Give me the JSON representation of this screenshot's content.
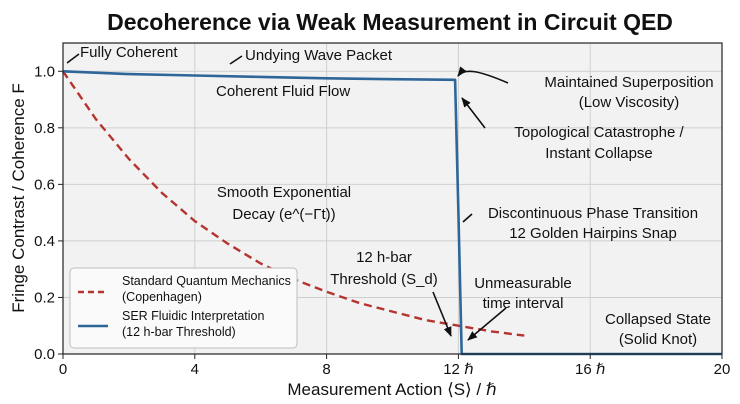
{
  "chart_data": {
    "type": "line",
    "title": "Decoherence via Weak Measurement in Circuit QED",
    "xlabel": "Measurement Action ⟨S⟩ / ℏ",
    "ylabel": "Fringe Contrast / Coherence F",
    "xlim": [
      0,
      20
    ],
    "ylim": [
      0,
      1.1
    ],
    "grid": true,
    "xticks": [
      {
        "value": 0,
        "label": "0"
      },
      {
        "value": 4,
        "label": "4"
      },
      {
        "value": 8,
        "label": "8"
      },
      {
        "value": 12,
        "label": "12 ℏ"
      },
      {
        "value": 16,
        "label": "16 ℏ"
      },
      {
        "value": 20,
        "label": "20"
      }
    ],
    "yticks": [
      {
        "value": 0,
        "label": "0.0"
      },
      {
        "value": 0.2,
        "label": "0.2"
      },
      {
        "value": 0.4,
        "label": "0.4"
      },
      {
        "value": 0.6,
        "label": "0.6"
      },
      {
        "value": 0.8,
        "label": "0.8"
      },
      {
        "value": 1.0,
        "label": "1.0"
      }
    ],
    "series": [
      {
        "name": "Standard Quantum Mechanics (Copenhagen)",
        "style": "dashed",
        "color": "#b5342f",
        "x": [
          0,
          1,
          2,
          3,
          4,
          5,
          6,
          7,
          8,
          9,
          10,
          11,
          12,
          13,
          14
        ],
        "y": [
          1.0,
          0.83,
          0.69,
          0.57,
          0.47,
          0.39,
          0.32,
          0.265,
          0.22,
          0.18,
          0.15,
          0.12,
          0.1,
          0.08,
          0.065
        ]
      },
      {
        "name": "SER Fluidic Interpretation (12 h-bar Threshold)",
        "style": "solid",
        "color": "#2f6699",
        "x": [
          0,
          2,
          4,
          6,
          8,
          10,
          11.9,
          12.0,
          12.1,
          20
        ],
        "y": [
          1.0,
          0.99,
          0.985,
          0.98,
          0.975,
          0.972,
          0.97,
          0.5,
          0.0,
          0.0
        ]
      }
    ],
    "legend_position": "bottom-left",
    "annotations": [
      {
        "lines": [
          "Fully Coherent"
        ]
      },
      {
        "lines": [
          "Undying Wave Packet"
        ]
      },
      {
        "lines": [
          "Coherent Fluid Flow"
        ]
      },
      {
        "lines": [
          "Maintained Superposition",
          "(Low Viscosity)"
        ]
      },
      {
        "lines": [
          "Topological Catastrophe /",
          "Instant Collapse"
        ]
      },
      {
        "lines": [
          "Smooth Exponential",
          "Decay (e^(−Γt))"
        ]
      },
      {
        "lines": [
          "Discontinuous Phase Transition",
          "12 Golden Hairpins Snap"
        ]
      },
      {
        "lines": [
          "12 h-bar",
          "Threshold (S_d)"
        ]
      },
      {
        "lines": [
          "Unmeasurable",
          "time interval"
        ]
      },
      {
        "lines": [
          "Collapsed State",
          "(Solid Knot)"
        ]
      }
    ]
  }
}
